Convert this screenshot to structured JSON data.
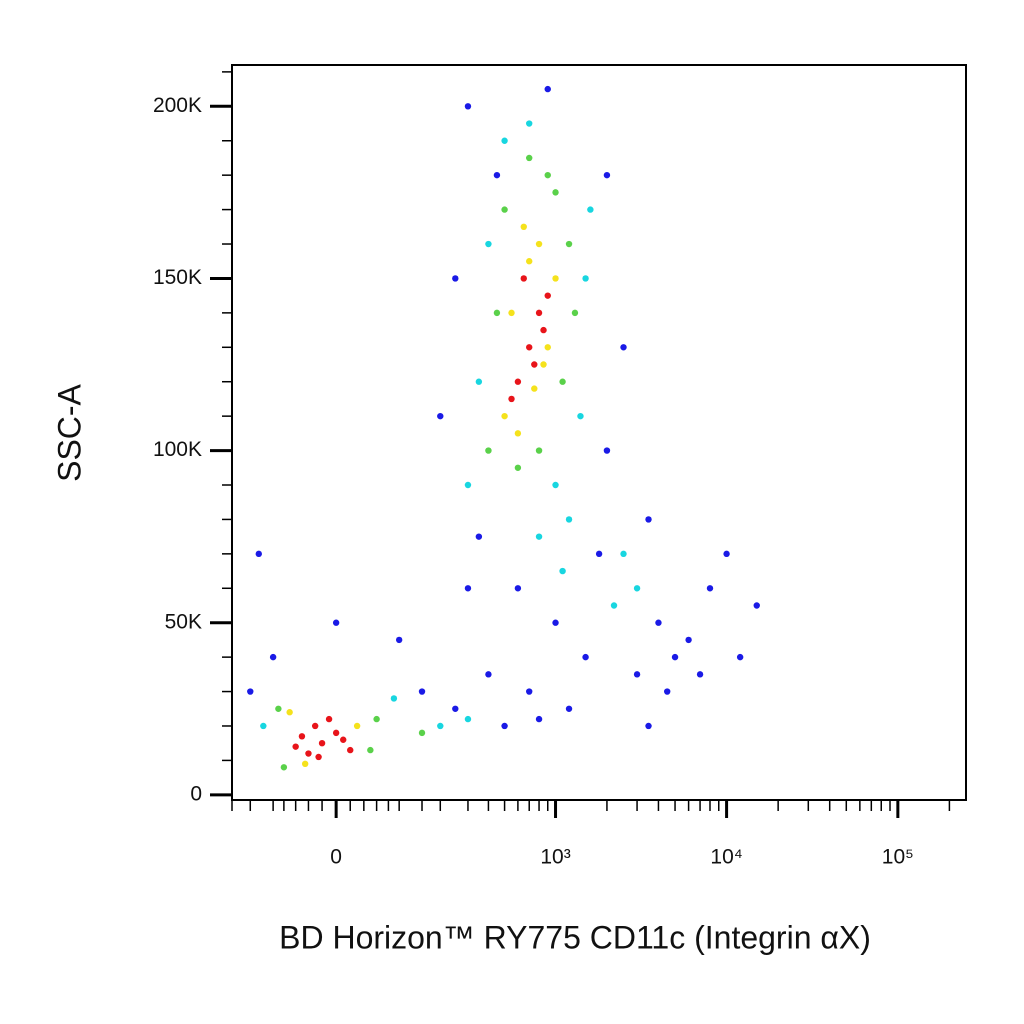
{
  "chart_data": {
    "type": "scatter",
    "xlabel": "BD Horizon™ RY775 CD11c (Integrin αX)",
    "ylabel": "SSC-A",
    "xscale": "biexponential",
    "xlim": [
      -200,
      250000
    ],
    "ylim": [
      -1500,
      212000
    ],
    "xticks": [
      0,
      {
        "value": 1000,
        "label": "10³"
      },
      {
        "value": 10000,
        "label": "10⁴"
      },
      {
        "value": 100000,
        "label": "10⁵"
      }
    ],
    "xminorticks": [
      -200,
      -150,
      -100,
      -80,
      -60,
      -40,
      -20,
      20,
      40,
      60,
      80,
      100,
      150,
      200,
      300,
      400,
      500,
      600,
      700,
      800,
      900,
      2000,
      3000,
      4000,
      5000,
      6000,
      7000,
      8000,
      9000,
      20000,
      30000,
      40000,
      50000,
      60000,
      70000,
      80000,
      90000,
      200000
    ],
    "yticks": [
      0,
      {
        "value": 50000,
        "label": "50K"
      },
      {
        "value": 100000,
        "label": "100K"
      },
      {
        "value": 150000,
        "label": "150K"
      },
      {
        "value": 200000,
        "label": "200K"
      }
    ],
    "yminorticks": [
      10000,
      20000,
      30000,
      40000,
      60000,
      70000,
      80000,
      90000,
      110000,
      120000,
      130000,
      140000,
      160000,
      170000,
      180000,
      190000,
      210000
    ],
    "series": [
      {
        "color": "#1a1ae6",
        "x": [
          250,
          200,
          300,
          2000,
          2500,
          3500,
          4000,
          5000,
          6000,
          8000,
          1500,
          1000,
          700,
          400,
          3000,
          4500,
          10000,
          15000,
          -150,
          -100,
          150,
          100,
          250,
          500,
          800,
          1200,
          600,
          2000,
          7000,
          12000,
          -130,
          0,
          300,
          3500,
          1800,
          900,
          450,
          350
        ],
        "values": [
          150000,
          110000,
          60000,
          180000,
          130000,
          80000,
          50000,
          40000,
          45000,
          60000,
          40000,
          50000,
          30000,
          35000,
          35000,
          30000,
          70000,
          55000,
          30000,
          40000,
          30000,
          45000,
          25000,
          20000,
          22000,
          25000,
          60000,
          100000,
          35000,
          40000,
          70000,
          50000,
          200000,
          20000,
          70000,
          205000,
          180000,
          75000
        ]
      },
      {
        "color": "#18d6e0",
        "x": [
          350,
          300,
          400,
          1500,
          1400,
          1600,
          1200,
          800,
          500,
          700,
          2500,
          3000,
          2200,
          -120,
          90,
          200,
          300,
          1000,
          1100
        ],
        "values": [
          120000,
          90000,
          160000,
          150000,
          110000,
          170000,
          80000,
          75000,
          190000,
          195000,
          70000,
          60000,
          55000,
          20000,
          28000,
          20000,
          22000,
          90000,
          65000
        ]
      },
      {
        "color": "#5ad14a",
        "x": [
          400,
          450,
          500,
          1100,
          1200,
          1000,
          900,
          600,
          700,
          800,
          1300,
          -90,
          50,
          -80,
          60,
          150
        ],
        "values": [
          100000,
          140000,
          170000,
          120000,
          160000,
          175000,
          180000,
          95000,
          185000,
          100000,
          140000,
          25000,
          13000,
          8000,
          22000,
          18000
        ]
      },
      {
        "color": "#f5e21c",
        "x": [
          500,
          600,
          700,
          800,
          900,
          1000,
          550,
          650,
          750,
          850,
          -70,
          30,
          -45
        ],
        "values": [
          110000,
          105000,
          155000,
          160000,
          130000,
          150000,
          140000,
          165000,
          118000,
          125000,
          24000,
          20000,
          9000
        ]
      },
      {
        "color": "#e8141a",
        "x": [
          -40,
          -20,
          0,
          -60,
          -10,
          20,
          -30,
          -50,
          10,
          -25,
          600,
          700,
          800,
          650,
          750,
          900,
          550,
          850
        ],
        "values": [
          12000,
          15000,
          18000,
          14000,
          22000,
          13000,
          20000,
          17000,
          16000,
          11000,
          120000,
          130000,
          140000,
          150000,
          125000,
          145000,
          115000,
          135000
        ]
      }
    ]
  }
}
